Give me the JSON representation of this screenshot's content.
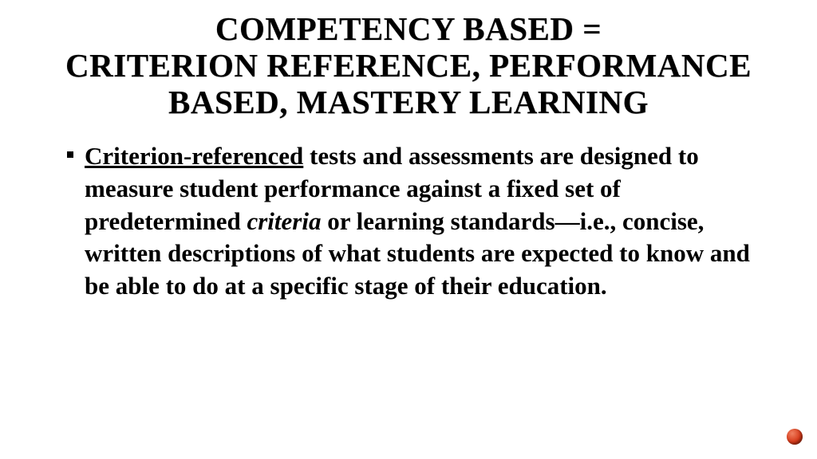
{
  "title": {
    "line1": "Competency Based =",
    "line2": "Criterion Reference, Performance Based, Mastery Learning",
    "fontsize": 41,
    "color": "#000000",
    "weight": 900,
    "transform": "uppercase"
  },
  "bullet": {
    "term": "Criterion-referenced",
    "rest_before_italic": " tests and assessments are designed to measure student performance against a fixed set of predetermined ",
    "italic_word": "criteria",
    "rest_after_italic": " or learning standards—i.e., concise, written descriptions of what students are expected to know and be able to do at a specific stage of their education.",
    "fontsize": 31,
    "color": "#000000",
    "weight": 700,
    "marker_color": "#000000"
  },
  "decoration": {
    "corner_dot_color": "#d63a1a"
  }
}
